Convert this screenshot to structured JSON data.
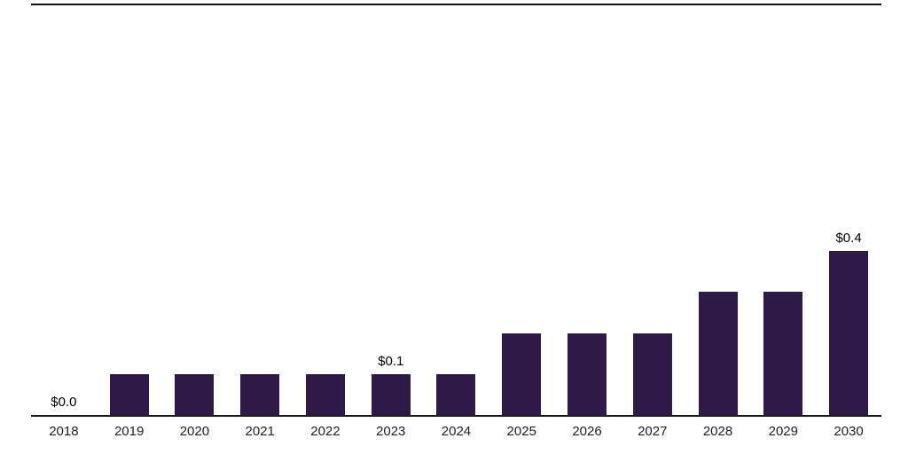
{
  "chart_data": {
    "type": "bar",
    "title": "",
    "xlabel": "",
    "ylabel": "",
    "categories": [
      "2018",
      "2019",
      "2020",
      "2021",
      "2022",
      "2023",
      "2024",
      "2025",
      "2026",
      "2027",
      "2028",
      "2029",
      "2030"
    ],
    "values": [
      0.0,
      0.1,
      0.1,
      0.1,
      0.1,
      0.1,
      0.1,
      0.2,
      0.2,
      0.2,
      0.3,
      0.3,
      0.4
    ],
    "value_prefix": "$",
    "annotations": [
      {
        "category": "2018",
        "text": "$0.0"
      },
      {
        "category": "2023",
        "text": "$0.1"
      },
      {
        "category": "2030",
        "text": "$0.4"
      }
    ],
    "ylim": [
      0,
      1.0
    ],
    "grid": false,
    "legend": "none",
    "bar_color": "#2e1a47",
    "axis_color": "#1a1a1a"
  }
}
